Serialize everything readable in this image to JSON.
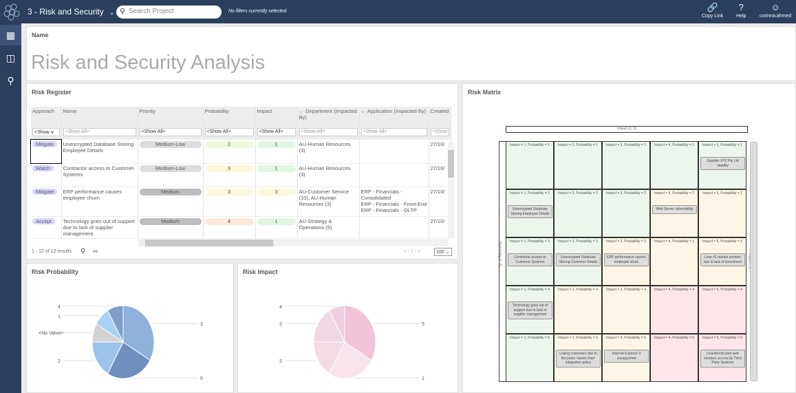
{
  "topbar": {
    "project": "3 - Risk and Security",
    "search_placeholder": "Search Project",
    "filter_status": "No filters currently selected",
    "copy_link": "Copy Link",
    "help": "Help",
    "user": "corinna.ahmed"
  },
  "sidebar": {
    "items": [
      {
        "icon": "dashboard-icon",
        "active": true
      },
      {
        "icon": "book-icon",
        "active": false
      },
      {
        "icon": "zoom-search-icon",
        "active": false
      }
    ]
  },
  "name_panel": {
    "label": "Name",
    "title": "Risk and Security Analysis"
  },
  "register": {
    "title": "Risk Register",
    "columns": [
      "Approach",
      "Name",
      "Priority",
      "Probability",
      "Impact",
      "← Department (Impacted By)",
      "← Application (Impacted By)",
      "Created"
    ],
    "filters": [
      "<Show ∨",
      "<Show All>",
      "<Show All>",
      "<Show All>",
      "<Show All>",
      "<Show All>",
      "<Show All>",
      "<Show"
    ],
    "rows": [
      {
        "approach": "Mitigate",
        "name": "Unencrypted Database Storing Employee Details",
        "priority": "Medium-Low",
        "probability": "2",
        "impact": "1",
        "department": "AU-Human Resources (3)",
        "application": "",
        "created": "27/10/"
      },
      {
        "approach": "Watch",
        "name": "Contractor access to Customer Systems",
        "priority": "Medium-Low",
        "probability": "3",
        "impact": "1",
        "department": "AU-Human Resources (3)",
        "application": "",
        "created": "27/10/"
      },
      {
        "approach": "Mitigate",
        "name": "ERP performance causes employee churn",
        "priority": "Medium",
        "probability": "3",
        "impact": "3",
        "department": "AU-Customer Service (10), AU-Human Resources (3)",
        "application": "ERP - Financials - Consolidated\nERP - Financials - Front-End\nERP - Financials - OLTP",
        "created": "27/10/"
      },
      {
        "approach": "Accept",
        "name": "Technology goes out of support due to lack of supplier management",
        "priority": "Medium",
        "probability": "4",
        "impact": "1",
        "department": "AU-Strategy & Operations (5)",
        "application": "",
        "created": "27/10/"
      }
    ],
    "results": "1 - 12 of 12 results",
    "page": "1",
    "page_size": "100"
  },
  "colors": {
    "navy": "#2b3f5e",
    "green": "#ecf6ec",
    "yellow": "#fdf6e6",
    "red": "#fce6ea",
    "low": "#dcdcdc",
    "med": "#bdbdbd"
  },
  "matrix": {
    "title": "Risk Matrix",
    "x_axis": "Impact (1..5)",
    "y_axis": "Probability (1..5)",
    "right_axis": "Impact (1..5)",
    "cell_colors": [
      [
        "green",
        "green",
        "green",
        "green",
        "green"
      ],
      [
        "green",
        "green",
        "green",
        "yellow",
        "yellow"
      ],
      [
        "green",
        "green",
        "yellow",
        "yellow",
        "yellow"
      ],
      [
        "green",
        "yellow",
        "yellow",
        "red",
        "red"
      ],
      [
        "green",
        "yellow",
        "yellow",
        "red",
        "red"
      ]
    ],
    "cards": [
      {
        "impact": 5,
        "probability": 1,
        "text": "Supplier XYZ Pty Ltd stability"
      },
      {
        "impact": 1,
        "probability": 2,
        "text": "Unencrypted Database Storing Employee Details"
      },
      {
        "impact": 4,
        "probability": 2,
        "text": "Web Server vulnerability"
      },
      {
        "impact": 1,
        "probability": 3,
        "text": "Contractor access to Customer Systems"
      },
      {
        "impact": 2,
        "probability": 3,
        "text": "Unencrypted Database Storing Customer Details"
      },
      {
        "impact": 3,
        "probability": 3,
        "text": "ERP performance causes employee churn"
      },
      {
        "impact": 5,
        "probability": 3,
        "text": "Lose #1 market position due to lack of investment"
      },
      {
        "impact": 1,
        "probability": 4,
        "text": "Technology goes out of support due to lack of supplier management"
      },
      {
        "impact": 2,
        "probability": 5,
        "text": "Losing customers due to the posts 'swivel chair' integration policy"
      },
      {
        "impact": 3,
        "probability": 5,
        "text": "Internet Explorer 9 unsupported"
      },
      {
        "impact": 5,
        "probability": 5,
        "text": "Unauthenticated web services access by Third Party Systems"
      }
    ]
  },
  "chart_data": [
    {
      "type": "pie",
      "title": "Risk Probability",
      "categories": [
        "3",
        "5",
        "2",
        "<No Value>",
        "1",
        "4"
      ],
      "values": [
        4,
        3,
        2,
        1,
        1,
        1
      ],
      "colors": [
        "#8fb1d9",
        "#6f90bd",
        "#9cc3ea",
        "#d3d3d3",
        "#a9d1f3",
        "#7f9fc8"
      ]
    },
    {
      "type": "pie",
      "title": "Risk Impact",
      "categories": [
        "5",
        "1",
        "2",
        "3",
        "4"
      ],
      "values": [
        4,
        3,
        2,
        2,
        1
      ],
      "colors": [
        "#f1c4da",
        "#f7e4ec",
        "#f3dbe6",
        "#f2d6e3",
        "#efcfdf"
      ]
    }
  ]
}
